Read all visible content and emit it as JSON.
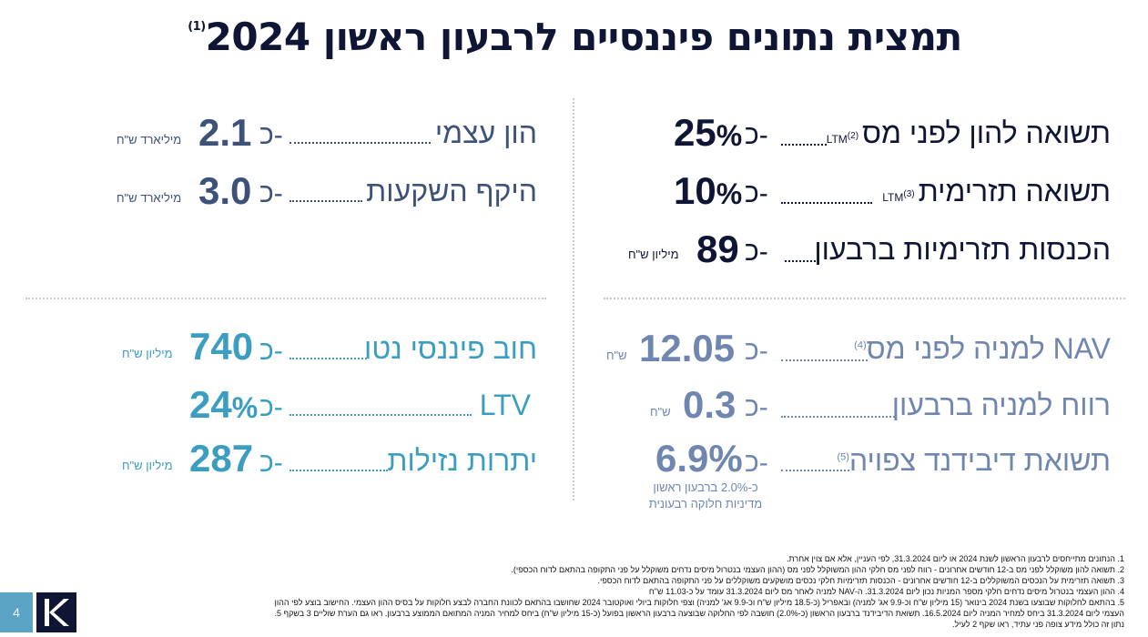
{
  "title": "תמצית נתונים פיננסיים לרבעון ראשון 2024",
  "title_note": "(1)",
  "colors": {
    "navy": "#0f1535",
    "slate": "#3d5179",
    "steel": "#6e86b0",
    "teal": "#3b9ec0"
  },
  "right_top": [
    {
      "label": "תשואה להון לפני מס",
      "sub": "LTM",
      "note": "(2)",
      "prefix": "כ-",
      "value": "25",
      "suffix": "%",
      "unit": ""
    },
    {
      "label": "תשואה תזרימית",
      "sub": "LTM",
      "note": "(3)",
      "prefix": "כ-",
      "value": "10",
      "suffix": "%",
      "unit": ""
    },
    {
      "label": "הכנסות תזרימיות ברבעון",
      "sub": "",
      "note": "",
      "prefix": "כ-",
      "value": "89",
      "suffix": "",
      "unit": "מיליון ש\"ח"
    }
  ],
  "left_top": [
    {
      "label": "הון עצמי",
      "prefix": "כ-",
      "value": "2.1",
      "unit": "מיליארד ש\"ח"
    },
    {
      "label": "היקף השקעות",
      "prefix": "כ-",
      "value": "3.0",
      "unit": "מיליארד ש\"ח"
    }
  ],
  "right_bottom": [
    {
      "label": "NAV למניה לפני מס",
      "note": "(4)",
      "prefix": "כ-",
      "value": "12.05",
      "unit": "ש\"ח"
    },
    {
      "label": "רווח למניה ברבעון",
      "note": "",
      "prefix": "כ-",
      "value": "0.3",
      "unit": "ש\"ח"
    },
    {
      "label": "תשואת דיבידנד צפויה",
      "note": "(5)",
      "prefix": "כ-",
      "value": "6.9%",
      "unit": ""
    }
  ],
  "dividend_note_1": "כ-2.0% ברבעון ראשון",
  "dividend_note_2": "מדיניות חלוקה רבעונית",
  "left_bottom": [
    {
      "label": "חוב פיננסי נטו",
      "prefix": "כ-",
      "value": "740",
      "suffix": "",
      "unit": "מיליון ש\"ח"
    },
    {
      "label": "LTV",
      "prefix": "כ-",
      "value": "24",
      "suffix": "%",
      "unit": ""
    },
    {
      "label": "יתרות נזילות",
      "prefix": "כ-",
      "value": "287",
      "suffix": "",
      "unit": "מיליון ש\"ח"
    }
  ],
  "footnotes": [
    "1.   הנתונים מתייחסים לרבעון הראשון לשנת 2024 או ליום 31.3.2024, לפי העניין, אלא אם צוין אחרת.",
    "2.   תשואה להון משוקלל לפני מס ב-12 חודשים אחרונים - רווח לפני מס חלקי ההון המשוקלל לפני מס (ההון העצמי בנטרול מיסים נדחים משוקלל על פני התקופה בהתאם לדוח הכספי).",
    "3.   תשואה תזרימית על הנכסים המשוקללים ב-12 חודשים אחרונים - הכנסות תזרימיות חלקי נכסים מושקעים משוקללים על פני התקופה בהתאם לדוח הכספי.",
    "4.   ההון העצמי בנטרול מיסים נדחים חלקי מספר המניות נכון ליום 31.3.2024. ה-NAV למניה לאחר מס ליום 31.3.2024 עומד על כ-11.03 ש\"ח",
    "5.   בהתאם לחלוקות שבוצעו בשנת 2024 בינואר (15 מיליון ש\"ח וכ-9.9 אג' למניה) ובאפריל (כ-18.5 מיליון ש\"ח וכ-9.9 אג' למניה) וצפי חלוקות ביולי ואוקטובר 2024 שחושבו בהתאם לכוונת החברה לבצע חלוקות על בסיס ההון העצמי. החישוב בוצע לפי ההון",
    "      העצמי ליום 31.3.2024 ביחס למחיר המניה ליום 16.5.2024. תשואת הדיבידנד ברבעון הראשון (כ-2.0%) חושבה לפי החלוקה שבוצעה ברבעון הראשון בפועל (כ-15 מיליון ש\"ח) ביחס למחיר המניה המתואם הממוצע ברבעון. ראו גם הערת שוליים 3 בשקף 5.",
    "      נתון זה כולל מידע צופה פני עתיד, ראו שקף 2 לעיל."
  ],
  "page_number": "4",
  "logo_letter": "K"
}
